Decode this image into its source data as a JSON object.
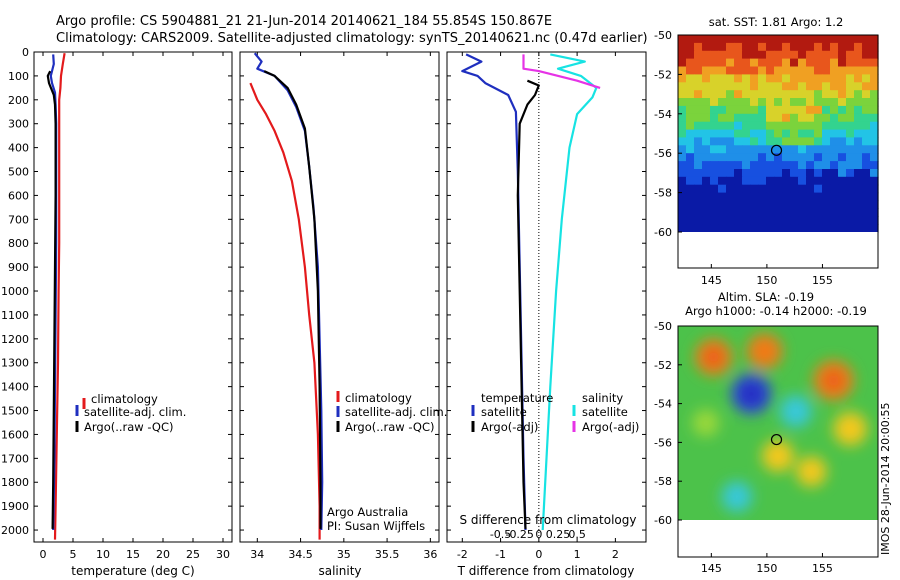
{
  "header": {
    "line1": "Argo profile: CS 5904881_21 21-Jun-2014 20140621_184 55.854S 150.867E",
    "line2": "Climatology: CARS2009. Satellite-adjusted climatology: synTS_20140621.nc (0.47d earlier)"
  },
  "colors": {
    "climatology": "#e31a1c",
    "satellite": "#1f2fbf",
    "argo": "#000000",
    "sal_satellite": "#17e3e3",
    "sal_argo": "#e633e6"
  },
  "chart_data": [
    {
      "type": "line",
      "name": "temperature-profile",
      "xlabel": "temperature (deg C)",
      "ylabel": "",
      "xlim": [
        -1.5,
        31.5
      ],
      "ylim": [
        2050,
        0
      ],
      "xticks": [
        0,
        5,
        10,
        15,
        20,
        25,
        30
      ],
      "yticks": [
        0,
        100,
        200,
        300,
        400,
        500,
        600,
        700,
        800,
        900,
        1000,
        1100,
        1200,
        1300,
        1400,
        1500,
        1600,
        1700,
        1800,
        1900,
        2000
      ],
      "legend": [
        "climatology",
        "satellite-adj. clim.",
        "Argo(..raw -QC)"
      ],
      "legend_position": "middle-center",
      "series": [
        {
          "name": "climatology",
          "color": "climatology",
          "points": [
            [
              3.6,
              5
            ],
            [
              3.3,
              50
            ],
            [
              3.0,
              100
            ],
            [
              2.9,
              150
            ],
            [
              2.7,
              200
            ],
            [
              2.7,
              300
            ],
            [
              2.7,
              500
            ],
            [
              2.7,
              800
            ],
            [
              2.6,
              1000
            ],
            [
              2.5,
              1300
            ],
            [
              2.3,
              1600
            ],
            [
              2.1,
              1900
            ],
            [
              2.0,
              2040
            ]
          ]
        },
        {
          "name": "satellite-adj. clim.",
          "color": "satellite",
          "points": [
            [
              1.7,
              10
            ],
            [
              1.8,
              50
            ],
            [
              1.3,
              100
            ],
            [
              1.5,
              130
            ],
            [
              2.0,
              170
            ],
            [
              2.1,
              220
            ],
            [
              2.2,
              300
            ],
            [
              2.2,
              500
            ],
            [
              2.2,
              800
            ],
            [
              2.1,
              1100
            ],
            [
              2.0,
              1400
            ],
            [
              1.9,
              1700
            ],
            [
              1.7,
              2000
            ]
          ]
        },
        {
          "name": "Argo(..raw -QC)",
          "color": "argo",
          "points": [
            [
              1.2,
              80
            ],
            [
              0.8,
              100
            ],
            [
              1.0,
              130
            ],
            [
              1.8,
              180
            ],
            [
              2.0,
              220
            ],
            [
              2.1,
              300
            ],
            [
              2.1,
              600
            ],
            [
              2.0,
              900
            ],
            [
              1.9,
              1200
            ],
            [
              1.8,
              1500
            ],
            [
              1.7,
              1800
            ],
            [
              1.6,
              1995
            ]
          ]
        }
      ]
    },
    {
      "type": "line",
      "name": "salinity-profile",
      "xlabel": "salinity",
      "ylabel": "",
      "xlim": [
        33.8,
        36.1
      ],
      "ylim": [
        2050,
        0
      ],
      "xticks": [
        34,
        34.5,
        35,
        35.5,
        36
      ],
      "legend": [
        "climatology",
        "satellite-adj. clim.",
        "Argo(..raw -QC)"
      ],
      "legend_position": "middle-right",
      "annotations": [
        "Argo Australia",
        "PI: Susan Wijffels"
      ],
      "series": [
        {
          "name": "climatology",
          "color": "climatology",
          "points": [
            [
              33.92,
              130
            ],
            [
              34.0,
              200
            ],
            [
              34.1,
              260
            ],
            [
              34.2,
              330
            ],
            [
              34.3,
              420
            ],
            [
              34.4,
              540
            ],
            [
              34.48,
              700
            ],
            [
              34.55,
              900
            ],
            [
              34.6,
              1100
            ],
            [
              34.66,
              1300
            ],
            [
              34.7,
              1600
            ],
            [
              34.72,
              1900
            ],
            [
              34.72,
              2040
            ]
          ]
        },
        {
          "name": "satellite-adj. clim.",
          "color": "satellite",
          "points": [
            [
              33.97,
              5
            ],
            [
              34.05,
              40
            ],
            [
              34.0,
              70
            ],
            [
              34.2,
              100
            ],
            [
              34.35,
              160
            ],
            [
              34.45,
              230
            ],
            [
              34.55,
              330
            ],
            [
              34.6,
              480
            ],
            [
              34.65,
              650
            ],
            [
              34.7,
              900
            ],
            [
              34.72,
              1200
            ],
            [
              34.74,
              1500
            ],
            [
              34.75,
              1800
            ],
            [
              34.74,
              2000
            ]
          ]
        },
        {
          "name": "Argo(..raw -QC)",
          "color": "argo",
          "points": [
            [
              34.08,
              80
            ],
            [
              34.2,
              100
            ],
            [
              34.35,
              150
            ],
            [
              34.45,
              220
            ],
            [
              34.55,
              320
            ],
            [
              34.6,
              480
            ],
            [
              34.66,
              700
            ],
            [
              34.7,
              1000
            ],
            [
              34.72,
              1400
            ],
            [
              34.73,
              1800
            ],
            [
              34.73,
              1995
            ]
          ]
        }
      ]
    },
    {
      "type": "line",
      "name": "difference-from-climatology",
      "xlabel": "T difference from climatology",
      "xlabel_top": "S difference from climatology",
      "xlim": [
        -2.4,
        2.8
      ],
      "ylim": [
        2050,
        0
      ],
      "xticks": [
        -2,
        -1,
        0,
        1,
        2
      ],
      "xticks_s": [
        -0.5,
        -0.25,
        0,
        0.25,
        0.5
      ],
      "zero_line": true,
      "legend_temperature_title": "temperature",
      "legend_temperature": [
        "satellite",
        "Argo(-adj)"
      ],
      "legend_salinity_title": "salinity",
      "legend_salinity": [
        "satellite",
        "Argo(-adj)"
      ],
      "series": [
        {
          "name": "temperature satellite",
          "color": "satellite",
          "points": [
            [
              -1.9,
              10
            ],
            [
              -1.5,
              40
            ],
            [
              -2.0,
              80
            ],
            [
              -1.6,
              100
            ],
            [
              -1.4,
              130
            ],
            [
              -0.8,
              180
            ],
            [
              -0.6,
              250
            ],
            [
              -0.55,
              500
            ],
            [
              -0.5,
              900
            ],
            [
              -0.45,
              1300
            ],
            [
              -0.4,
              1700
            ],
            [
              -0.35,
              2000
            ]
          ]
        },
        {
          "name": "temperature Argo(-adj)",
          "color": "argo",
          "points": [
            [
              -0.3,
              120
            ],
            [
              0,
              140
            ],
            [
              -0.1,
              180
            ],
            [
              -0.3,
              220
            ],
            [
              -0.5,
              300
            ],
            [
              -0.55,
              600
            ],
            [
              -0.5,
              1000
            ],
            [
              -0.45,
              1400
            ],
            [
              -0.4,
              1800
            ],
            [
              -0.35,
              1995
            ]
          ]
        },
        {
          "name": "salinity satellite",
          "color": "sal_satellite",
          "points": [
            [
              0.3,
              10
            ],
            [
              1.2,
              40
            ],
            [
              0.5,
              70
            ],
            [
              1.1,
              100
            ],
            [
              1.5,
              150
            ],
            [
              1.4,
              190
            ],
            [
              1.0,
              260
            ],
            [
              0.8,
              400
            ],
            [
              0.6,
              700
            ],
            [
              0.45,
              1000
            ],
            [
              0.3,
              1400
            ],
            [
              0.2,
              1700
            ],
            [
              0.1,
              2000
            ]
          ]
        },
        {
          "name": "salinity Argo(-adj)",
          "color": "sal_argo",
          "points": [
            [
              -0.4,
              10
            ],
            [
              -0.4,
              70
            ],
            [
              0,
              80
            ],
            [
              1.0,
              120
            ],
            [
              1.6,
              150
            ]
          ]
        }
      ]
    }
  ],
  "maps": {
    "sst": {
      "title": "sat. SST: 1.81 Argo: 1.2",
      "yticks": [
        "-50",
        "-52",
        "-54",
        "-56",
        "-58",
        "-60"
      ],
      "xticks": [
        "145",
        "150",
        "155"
      ],
      "grid_cols": 25,
      "grid_rows": 25,
      "lon_range": [
        142,
        160
      ],
      "lat_range": [
        -60,
        -50
      ],
      "float_marker": [
        150.867,
        -55.854
      ]
    },
    "sla": {
      "title_line1": "Altim. SLA: -0.19",
      "title_line2": "Argo h1000: -0.14 h2000: -0.19",
      "yticks": [
        "-50",
        "-52",
        "-54",
        "-56",
        "-58",
        "-60"
      ],
      "xticks": [
        "145",
        "150",
        "155"
      ],
      "lon_range": [
        142,
        160
      ],
      "lat_range": [
        -60,
        -50
      ],
      "float_marker": [
        150.867,
        -55.854
      ],
      "features": [
        {
          "lon": 148.6,
          "lat": -53.5,
          "value": -1.0
        },
        {
          "lon": 152.6,
          "lat": -54.4,
          "value": -0.5
        },
        {
          "lon": 145.2,
          "lat": -51.6,
          "value": 0.8
        },
        {
          "lon": 149.8,
          "lat": -51.3,
          "value": 0.7
        },
        {
          "lon": 156.0,
          "lat": -52.8,
          "value": 1.0
        },
        {
          "lon": 157.5,
          "lat": -55.3,
          "value": 0.6
        },
        {
          "lon": 151.0,
          "lat": -56.7,
          "value": 0.5
        },
        {
          "lon": 154.0,
          "lat": -57.5,
          "value": 0.4
        },
        {
          "lon": 147.3,
          "lat": -58.8,
          "value": -0.4
        },
        {
          "lon": 144.5,
          "lat": -55.0,
          "value": 0.2
        }
      ]
    }
  },
  "watermark": "IMOS 28-Jun-2014 20:00:55"
}
